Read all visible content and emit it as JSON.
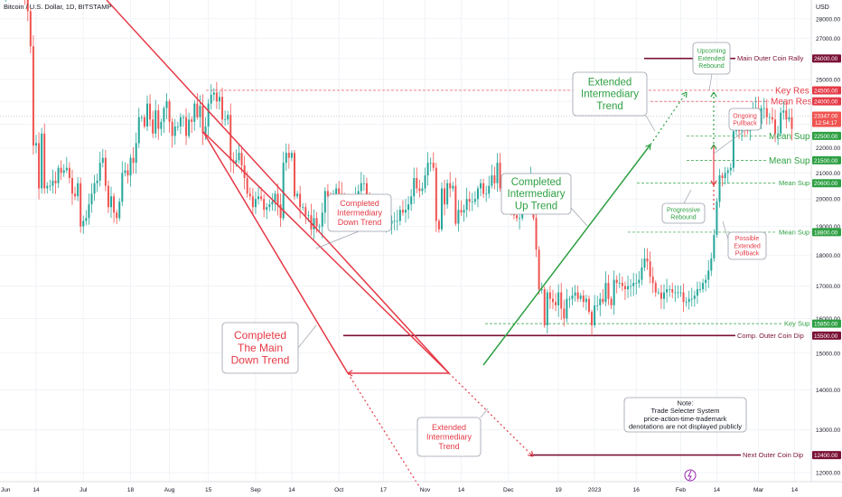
{
  "header": {
    "symbol_title": "Bitcoin / U.S. Dollar, 1D, BITSTAMP",
    "currency": "USD"
  },
  "colors": {
    "up": "#26a69a",
    "down": "#ef5350",
    "downtrend": "#e53946",
    "uptrend": "#2ea043",
    "maroon": "#7b1036",
    "grid": "#f0f3f7"
  },
  "chart_data": {
    "type": "candlestick",
    "y_scale": "log",
    "ylim": [
      11800,
      29000
    ],
    "price_ticks": [
      12000,
      13000,
      14000,
      15000,
      16000,
      17000,
      18000,
      19000,
      20000,
      21000,
      22000,
      23000,
      24000,
      25000,
      26000,
      27000,
      28000
    ],
    "price_tick_labels": [
      "12000.00",
      "13000.00",
      "14000.00",
      "15000.00",
      "16000.00",
      "17000.00",
      "18000.00",
      "19000.00",
      "20000.00",
      "21000.00",
      "22000.00",
      "23000.00",
      "24000.00",
      "25000.00",
      "26000.00",
      "27000.00",
      "28000.00"
    ],
    "x_range": [
      "2022-06-01",
      "2023-03-20"
    ],
    "date_ticks": [
      {
        "date": "2022-06-01",
        "label": "Jun"
      },
      {
        "date": "2022-06-14",
        "label": "14"
      },
      {
        "date": "2022-07-01",
        "label": "Jul"
      },
      {
        "date": "2022-07-18",
        "label": "18"
      },
      {
        "date": "2022-08-01",
        "label": "Aug"
      },
      {
        "date": "2022-08-15",
        "label": "15"
      },
      {
        "date": "2022-09-01",
        "label": "Sep"
      },
      {
        "date": "2022-09-14",
        "label": "14"
      },
      {
        "date": "2022-10-01",
        "label": "Oct"
      },
      {
        "date": "2022-10-17",
        "label": "17"
      },
      {
        "date": "2022-11-01",
        "label": "Nov"
      },
      {
        "date": "2022-11-14",
        "label": "14"
      },
      {
        "date": "2022-12-01",
        "label": "Dec"
      },
      {
        "date": "2022-12-19",
        "label": "19"
      },
      {
        "date": "2023-01-01",
        "label": "2023"
      },
      {
        "date": "2023-01-16",
        "label": "16"
      },
      {
        "date": "2023-02-01",
        "label": "Feb"
      },
      {
        "date": "2023-02-14",
        "label": "14"
      },
      {
        "date": "2023-03-01",
        "label": "Mar"
      },
      {
        "date": "2023-03-14",
        "label": "14"
      }
    ],
    "candles": {
      "start_date": "2022-06-01",
      "closes": [
        29800,
        29300,
        29700,
        29900,
        30000,
        31100,
        31300,
        30200,
        30100,
        29100,
        28400,
        26600,
        22100,
        22200,
        20400,
        22600,
        20400,
        20500,
        20500,
        20700,
        20600,
        21200,
        21000,
        21100,
        21200,
        20800,
        20200,
        20100,
        20600,
        19000,
        19200,
        19300,
        19800,
        20200,
        20600,
        20700,
        21400,
        21600,
        20500,
        19700,
        20100,
        19500,
        19300,
        19900,
        21000,
        21100,
        20900,
        21600,
        21400,
        22200,
        23300,
        23300,
        22900,
        23900,
        23200,
        22600,
        23600,
        22800,
        23100,
        23700,
        24000,
        23100,
        22500,
        22900,
        22900,
        23300,
        23300,
        22500,
        23200,
        23100,
        23900,
        23300,
        23800,
        22600,
        22900,
        23900,
        24300,
        24400,
        24000,
        24200,
        23200,
        23200,
        23400,
        21500,
        21400,
        21500,
        21800,
        21300,
        20800,
        20200,
        20100,
        19700,
        20000,
        20100,
        20000,
        19600,
        19700,
        19800,
        19900,
        20200,
        19800,
        19300,
        21400,
        21800,
        21600,
        21800,
        20100,
        20200,
        19700,
        19700,
        19400,
        19400,
        18900,
        19300,
        19000,
        19000,
        19500,
        20300,
        20100,
        19700,
        20200,
        20400,
        20200,
        20000,
        19500,
        19500,
        19300,
        19500,
        20100,
        20300,
        20600,
        20600,
        20000,
        19400,
        19500,
        19500,
        19300,
        19500,
        19200,
        19300,
        19100,
        19200,
        19200,
        19200,
        19600,
        19500,
        19600,
        19800,
        20100,
        20800,
        20400,
        20300,
        20400,
        20900,
        21400,
        21400,
        21200,
        19200,
        18900,
        20400,
        19800,
        20600,
        20400,
        20500,
        19100,
        19600,
        19500,
        19600,
        20000,
        19900,
        19900,
        20000,
        20400,
        20600,
        20200,
        20200,
        20500,
        20900,
        20600,
        21400,
        20400,
        20200,
        19900,
        19900,
        19800,
        19400,
        19300,
        19300,
        19800,
        20200,
        20400,
        20800,
        19300,
        18200,
        16900,
        16900,
        15800,
        16800,
        16600,
        16500,
        16400,
        16800,
        16300,
        16000,
        16600,
        16600,
        16700,
        16800,
        16600,
        16700,
        16500,
        16600,
        16200,
        15800,
        16400,
        16400,
        16600,
        16500,
        17100,
        16600,
        16400,
        17200,
        17100,
        17100,
        17000,
        16900,
        17000,
        17000,
        17100,
        17100,
        17200,
        17600,
        17900,
        17800,
        17300,
        17100,
        16800,
        16800,
        16600,
        16800,
        16900,
        16900,
        16800,
        16800,
        16800,
        16800,
        16500,
        16500,
        16600,
        16600,
        16700,
        16900,
        16900,
        17100,
        17200,
        17500,
        17900,
        18700,
        19900,
        20900,
        20800,
        21000,
        21100,
        21200,
        22700,
        22900,
        22700,
        23000,
        22900,
        22700,
        23100,
        23500,
        23700,
        23000,
        23700,
        23700,
        23300,
        23300,
        23200,
        22600,
        22600,
        23500,
        23600,
        23200,
        23300,
        22800
      ],
      "last_close": 23347
    },
    "horizontal_levels": [
      {
        "price": 26000,
        "label": "Main Outer Coin Rally",
        "tag": "26000.00",
        "color": "#7b1036"
      },
      {
        "price": 24500,
        "label": "Key Res",
        "tag": "24500.00",
        "color": "#e53946"
      },
      {
        "price": 24000,
        "label": "Mean Res",
        "tag": "24000.00",
        "color": "#e53946"
      },
      {
        "price": 22500,
        "label": "Mean Sup",
        "tag": "22500.00",
        "color": "#2ea043"
      },
      {
        "price": 21500,
        "label": "Mean Sup",
        "tag": "21500.00",
        "color": "#2ea043"
      },
      {
        "price": 20600,
        "label": "Mean Sup",
        "tag": "20600.00",
        "color": "#2ea043"
      },
      {
        "price": 18800,
        "label": "Mean Sup",
        "tag": "18800.00",
        "color": "#2ea043"
      },
      {
        "price": 15850,
        "label": "Key Sup",
        "tag": "15850.00",
        "color": "#2ea043"
      },
      {
        "price": 15500,
        "label": "Comp. Outer Coin Dip",
        "tag": "15500.00",
        "color": "#7b1036"
      },
      {
        "price": 12400,
        "label": "Next Outer Coin Dip",
        "tag": "12400.00",
        "color": "#7b1036"
      }
    ],
    "price_tag": {
      "value": "23347.00",
      "countdown": "12:54:17"
    },
    "annotations": {
      "main_down": "Completed\nThe Main\nDown Trend",
      "inter_down": "Completed\nIntermediary\nDown Trend",
      "inter_up": "Completed\nIntermediary\nUp Trend",
      "ext_inter_trend": "Extended\nIntermediary\nTrend",
      "ext_inter_trend_down": "Extended\nIntermediary\nTrend",
      "upcoming_rebound": "Upcoming\nExtended\nRebound",
      "ongoing_pullback": "Ongoing\nPullback",
      "progressive_rebound": "Progressive\nRebound",
      "possible_pullback": "Possible\nExtended\nPullback",
      "note": "Note:\nTrade Selecter System\nprice-action-time-trademark\ndenotations are not displayed publicly"
    }
  }
}
